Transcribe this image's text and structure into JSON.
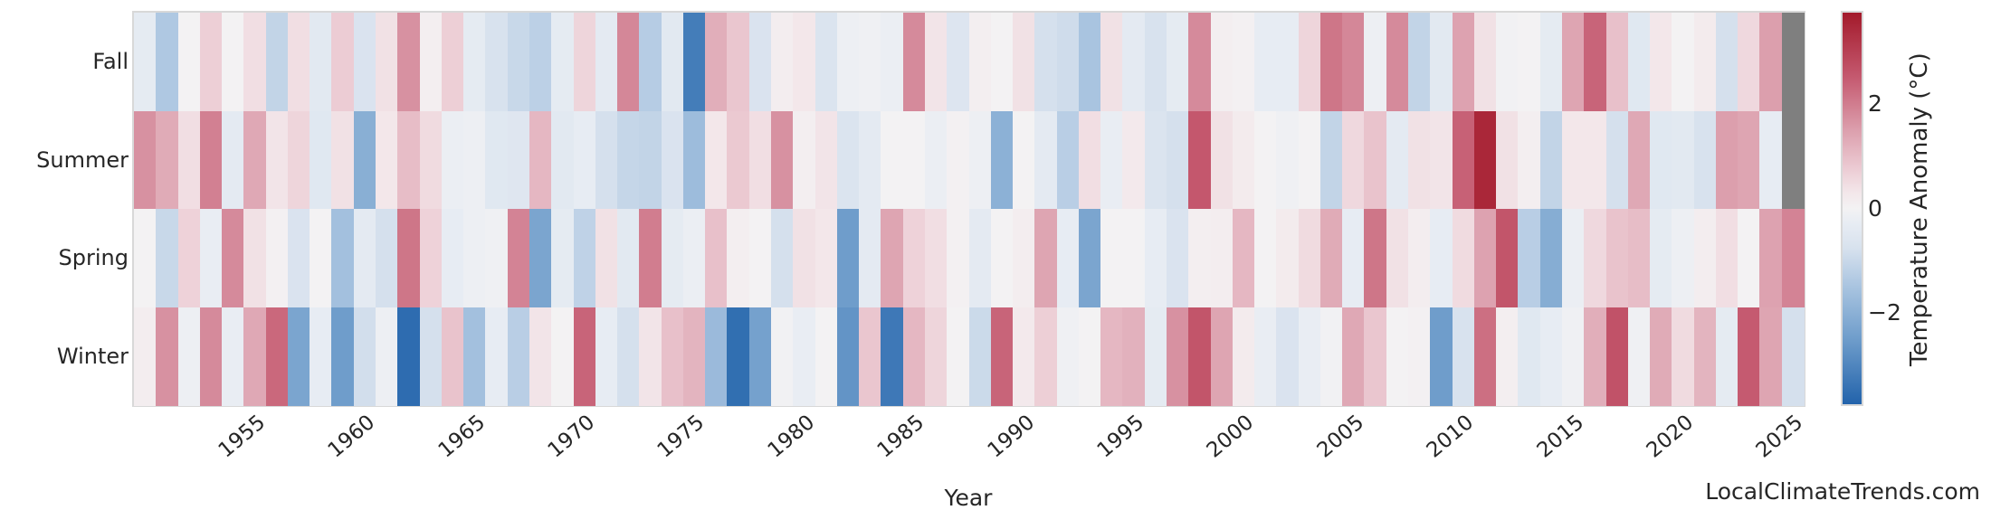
{
  "page": {
    "watermark": "LocalClimateTrends.com",
    "background": "#ffffff",
    "text_color": "#262626"
  },
  "chart_data": {
    "type": "heatmap",
    "title": "",
    "xlabel": "Year",
    "ylabel": "",
    "rows": [
      "Fall",
      "Summer",
      "Spring",
      "Winter"
    ],
    "x_start_year": 1950,
    "x_end_year": 2025,
    "x_ticks": [
      1955,
      1960,
      1965,
      1970,
      1975,
      1980,
      1985,
      1990,
      1995,
      2000,
      2005,
      2010,
      2015,
      2020,
      2025
    ],
    "grid": false,
    "missing_value_note": "Fall and Summer 2025 are missing (gray cells)",
    "colorbar": {
      "label": "Temperature Anomaly (°C)",
      "ticks": [
        2,
        0,
        -2
      ],
      "vmin": -3.75,
      "vmax": 3.75,
      "missing_color": "#7f7f7f",
      "position": "right"
    },
    "colormap_stops": [
      {
        "v": -3.75,
        "c": "#2263ab"
      },
      {
        "v": -2.5,
        "c": "#6f9dcb"
      },
      {
        "v": -1.5,
        "c": "#a9c4e0"
      },
      {
        "v": -0.75,
        "c": "#d8e2ee"
      },
      {
        "v": -0.3,
        "c": "#e7ecf3"
      },
      {
        "v": 0,
        "c": "#f3f2f3"
      },
      {
        "v": 0.3,
        "c": "#f3e7ea"
      },
      {
        "v": 0.75,
        "c": "#ecccd4"
      },
      {
        "v": 1.5,
        "c": "#dc9fad"
      },
      {
        "v": 2.5,
        "c": "#c55a70"
      },
      {
        "v": 3.75,
        "c": "#a31a2b"
      }
    ],
    "series": [
      {
        "name": "Fall",
        "values": [
          -0.35,
          -1.4,
          0,
          0.7,
          0,
          0.45,
          -1.1,
          0.45,
          -0.45,
          0.75,
          -0.7,
          0.4,
          1.7,
          0.1,
          0.7,
          -0.35,
          -0.75,
          -1.0,
          -1.2,
          -0.35,
          0.6,
          -0.4,
          1.85,
          -1.3,
          -0.45,
          -3.2,
          1.25,
          0.85,
          -0.7,
          0.15,
          0.3,
          -0.65,
          -0.15,
          -0.1,
          -0.2,
          1.8,
          0.35,
          -0.6,
          0.1,
          0,
          0.4,
          -0.8,
          -0.9,
          -1.5,
          0.4,
          -0.4,
          -0.75,
          -0.35,
          1.8,
          0.1,
          0.05,
          -0.3,
          -0.3,
          0.6,
          2.1,
          1.85,
          -0.15,
          1.8,
          -1.1,
          -0.45,
          1.45,
          0.4,
          -0.05,
          0,
          -0.35,
          1.4,
          2.35,
          0.95,
          -0.5,
          0.3,
          0,
          0.2,
          -0.8,
          0.55,
          1.5,
          null
        ]
      },
      {
        "name": "Summer",
        "values": [
          1.7,
          1.3,
          0.45,
          1.95,
          -0.4,
          1.35,
          0.35,
          0.6,
          -0.5,
          0.4,
          -2.05,
          0.3,
          1.0,
          0.5,
          -0.2,
          -0.15,
          -0.5,
          -0.55,
          1.1,
          -0.45,
          -0.3,
          -0.8,
          -1.05,
          -1.1,
          -0.7,
          -1.7,
          0.3,
          0.8,
          0.45,
          1.7,
          0.1,
          0.35,
          -0.65,
          -0.4,
          0,
          0,
          -0.2,
          0.05,
          -0.15,
          -2.0,
          0,
          -0.4,
          -1.25,
          0.45,
          -0.25,
          0.25,
          -0.65,
          -0.8,
          2.55,
          0.4,
          0.2,
          0,
          -0.1,
          0,
          -1.1,
          0.55,
          0.9,
          -0.4,
          0.4,
          0.35,
          2.4,
          3.5,
          0.4,
          0.1,
          -1.1,
          0.3,
          0.3,
          -0.8,
          1.35,
          -0.5,
          -0.45,
          -0.75,
          1.5,
          1.4,
          -0.3,
          null
        ]
      },
      {
        "name": "Spring",
        "values": [
          0,
          -1.0,
          0.65,
          -0.25,
          1.8,
          0.4,
          0.05,
          -0.7,
          0,
          -1.6,
          -0.4,
          -0.8,
          2.1,
          0.65,
          -0.3,
          -0.15,
          -0.1,
          1.9,
          -2.3,
          -0.35,
          -1.15,
          0.4,
          -0.45,
          2.0,
          -0.35,
          -0.2,
          0.95,
          0.1,
          0,
          -0.8,
          0.4,
          0.3,
          -2.5,
          -0.4,
          1.4,
          0.65,
          0.45,
          0.05,
          -0.4,
          0,
          0.15,
          1.4,
          -0.3,
          -2.3,
          0,
          0,
          -0.3,
          -0.7,
          0.1,
          0.15,
          1.1,
          0,
          0.2,
          0.5,
          1.3,
          -0.3,
          2.1,
          0.4,
          0.15,
          -0.3,
          0.5,
          1.45,
          2.6,
          -1.25,
          -2.1,
          -0.2,
          0.55,
          0.9,
          1.0,
          -0.35,
          -0.15,
          0.15,
          0.45,
          0,
          1.45,
          1.9
        ]
      },
      {
        "name": "Winter",
        "values": [
          0.15,
          1.7,
          -0.15,
          1.8,
          -0.25,
          1.35,
          2.3,
          -2.3,
          -0.3,
          -2.5,
          -0.85,
          -0.15,
          -3.55,
          -0.8,
          0.9,
          -1.6,
          -0.3,
          -1.25,
          0.35,
          0,
          2.35,
          -0.3,
          -0.8,
          0.35,
          0.95,
          1.15,
          -1.75,
          -3.5,
          -2.4,
          -0.05,
          -0.25,
          0,
          -2.7,
          0.85,
          -3.3,
          1.1,
          0.6,
          0,
          -0.95,
          2.35,
          0.25,
          0.7,
          -0.1,
          0,
          1.1,
          1.2,
          -0.35,
          1.7,
          2.6,
          1.4,
          0.2,
          -0.25,
          -0.7,
          -0.25,
          -0.05,
          1.35,
          0.85,
          0,
          0.05,
          -2.5,
          -0.75,
          2.2,
          0.1,
          -0.5,
          -0.3,
          -0.1,
          1.25,
          2.65,
          -0.1,
          1.3,
          0.5,
          1.15,
          -0.35,
          2.5,
          1.4,
          -0.8
        ]
      }
    ]
  }
}
